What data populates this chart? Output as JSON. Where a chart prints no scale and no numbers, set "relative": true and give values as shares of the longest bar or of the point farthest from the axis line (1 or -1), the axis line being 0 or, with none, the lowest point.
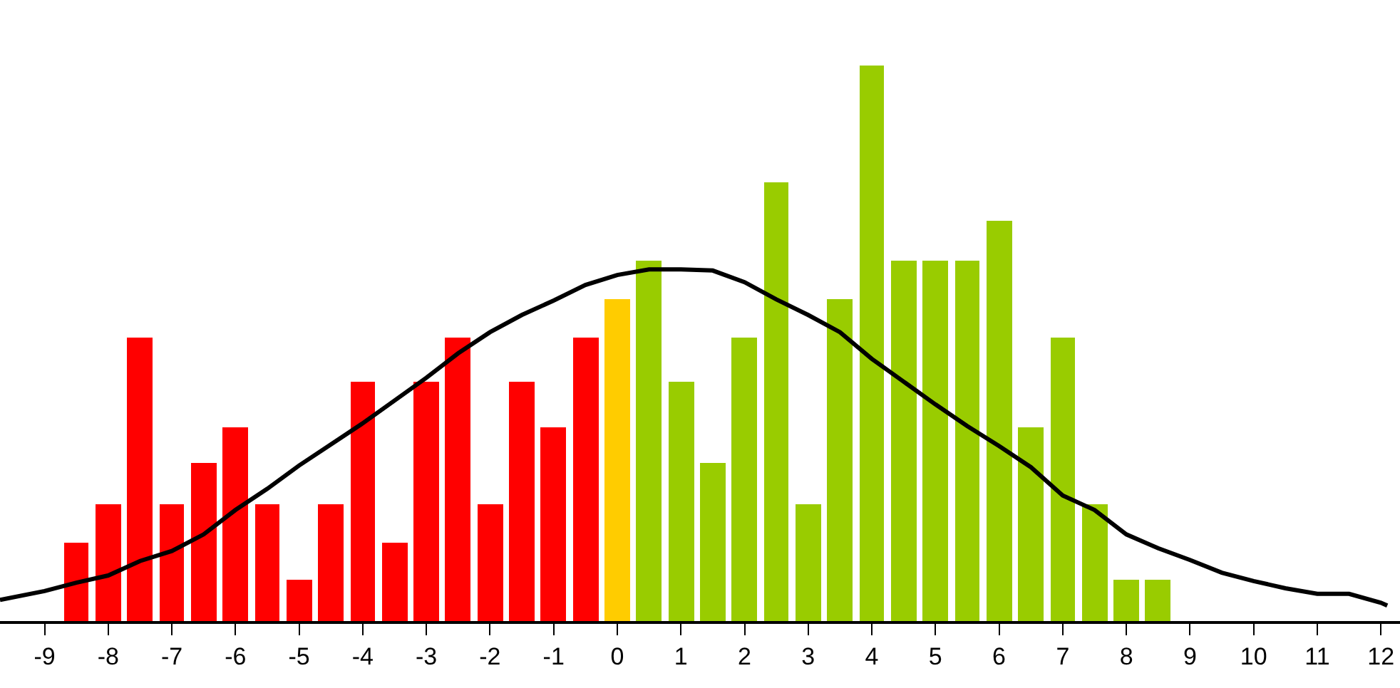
{
  "chart_data": {
    "type": "bar",
    "relative": true,
    "xlim": [
      -9.7,
      12.3
    ],
    "xticks": [
      -9,
      -8,
      -7,
      -6,
      -5,
      -4,
      -3,
      -2,
      -1,
      0,
      1,
      2,
      3,
      4,
      5,
      6,
      7,
      8,
      9,
      10,
      11,
      12
    ],
    "series": [
      {
        "x": [
          -8.5,
          -8,
          -7.5,
          -7,
          -6.5,
          -6,
          -5.5,
          -5,
          -4.5,
          -4,
          -3.5,
          -3,
          -2.5,
          -2,
          -1.5,
          -1,
          -0.5,
          0,
          0.5,
          1,
          1.5,
          2,
          2.5,
          3,
          3.5,
          4,
          4.5,
          5,
          5.5,
          6,
          6.5,
          7,
          7.5,
          8,
          8.5
        ],
        "values": [
          0.14,
          0.21,
          0.51,
          0.21,
          0.285,
          0.35,
          0.21,
          0.074,
          0.21,
          0.43,
          0.14,
          0.43,
          0.51,
          0.21,
          0.43,
          0.35,
          0.51,
          0.58,
          0.65,
          0.43,
          0.285,
          0.51,
          0.79,
          0.21,
          0.58,
          1,
          0.65,
          0.65,
          0.65,
          0.72,
          0.35,
          0.51,
          0.21,
          0.074,
          0.074
        ],
        "colors": [
          "#ff0000",
          "#ff0000",
          "#ff0000",
          "#ff0000",
          "#ff0000",
          "#ff0000",
          "#ff0000",
          "#ff0000",
          "#ff0000",
          "#ff0000",
          "#ff0000",
          "#ff0000",
          "#ff0000",
          "#ff0000",
          "#ff0000",
          "#ff0000",
          "#ff0000",
          "#ffcc00",
          "#99cc00",
          "#99cc00",
          "#99cc00",
          "#99cc00",
          "#99cc00",
          "#99cc00",
          "#99cc00",
          "#99cc00",
          "#99cc00",
          "#99cc00",
          "#99cc00",
          "#99cc00",
          "#99cc00",
          "#99cc00",
          "#99cc00",
          "#99cc00",
          "#99cc00"
        ]
      },
      {
        "type": "line",
        "color": "#000000",
        "line_style": "solid",
        "marker": "none",
        "x": [
          -9.7,
          -9,
          -8.5,
          -8,
          -7.5,
          -7,
          -6.5,
          -6,
          -5.5,
          -5,
          -4.5,
          -4,
          -3.5,
          -3,
          -2.5,
          -2,
          -1.5,
          -1,
          -0.5,
          0,
          0.5,
          1,
          1.5,
          2,
          2.5,
          3,
          3.5,
          4,
          4.5,
          5,
          5.5,
          6,
          6.5,
          7,
          7.5,
          8,
          8.5,
          9,
          9.5,
          10,
          10.5,
          11,
          11.5,
          12,
          12.1
        ],
        "values": [
          0.038,
          0.054,
          0.069,
          0.082,
          0.108,
          0.126,
          0.156,
          0.2,
          0.238,
          0.28,
          0.318,
          0.356,
          0.397,
          0.438,
          0.482,
          0.52,
          0.551,
          0.577,
          0.605,
          0.623,
          0.633,
          0.633,
          0.631,
          0.61,
          0.579,
          0.551,
          0.52,
          0.472,
          0.431,
          0.39,
          0.351,
          0.315,
          0.277,
          0.226,
          0.2,
          0.156,
          0.131,
          0.11,
          0.087,
          0.072,
          0.059,
          0.049,
          0.049,
          0.033,
          0.028
        ]
      }
    ]
  }
}
